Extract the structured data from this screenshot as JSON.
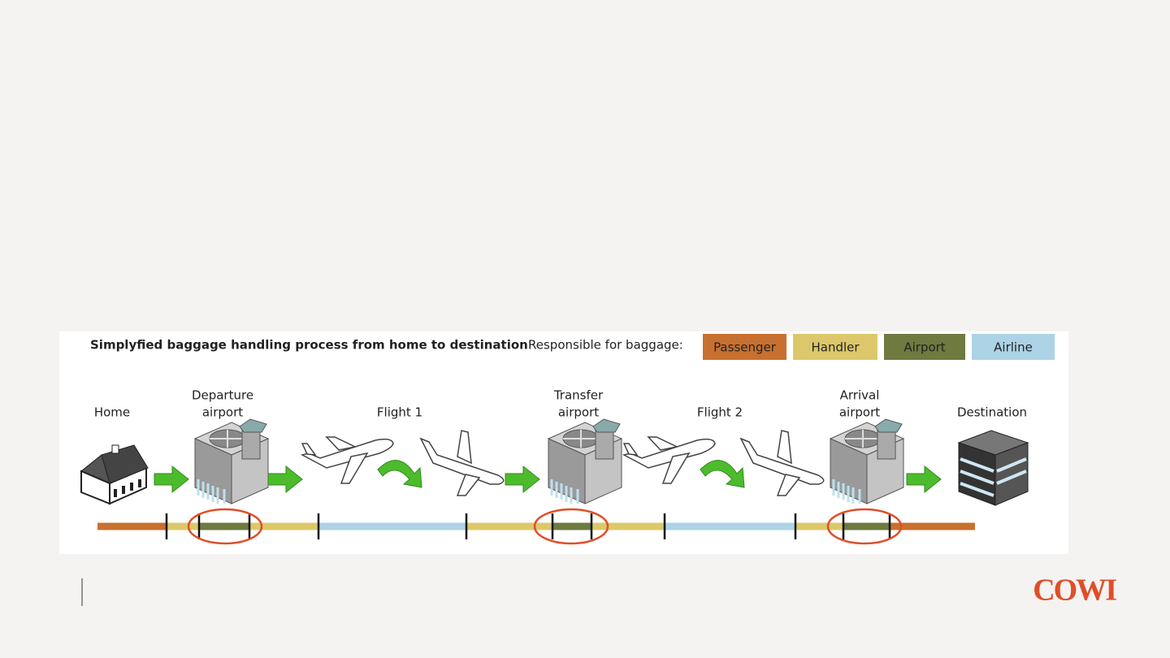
{
  "header": {
    "title": "Simplyfied baggage handling process from home to destination",
    "legend_label": "Responsible for baggage:"
  },
  "legend": [
    {
      "label": "Passenger",
      "color": "#c8702f"
    },
    {
      "label": "Handler",
      "color": "#dcc86a"
    },
    {
      "label": "Airport",
      "color": "#6e7a3f"
    },
    {
      "label": "Airline",
      "color": "#acd3e6"
    }
  ],
  "stages": [
    {
      "lines": [
        "Home"
      ]
    },
    {
      "lines": [
        "Departure",
        "airport"
      ]
    },
    {
      "lines": [
        "Flight 1"
      ]
    },
    {
      "lines": [
        "Transfer",
        "airport"
      ]
    },
    {
      "lines": [
        "Flight 2"
      ]
    },
    {
      "lines": [
        "Arrival",
        "airport"
      ]
    },
    {
      "lines": [
        "Destination"
      ]
    }
  ],
  "footer": {
    "logo": "COWI"
  }
}
